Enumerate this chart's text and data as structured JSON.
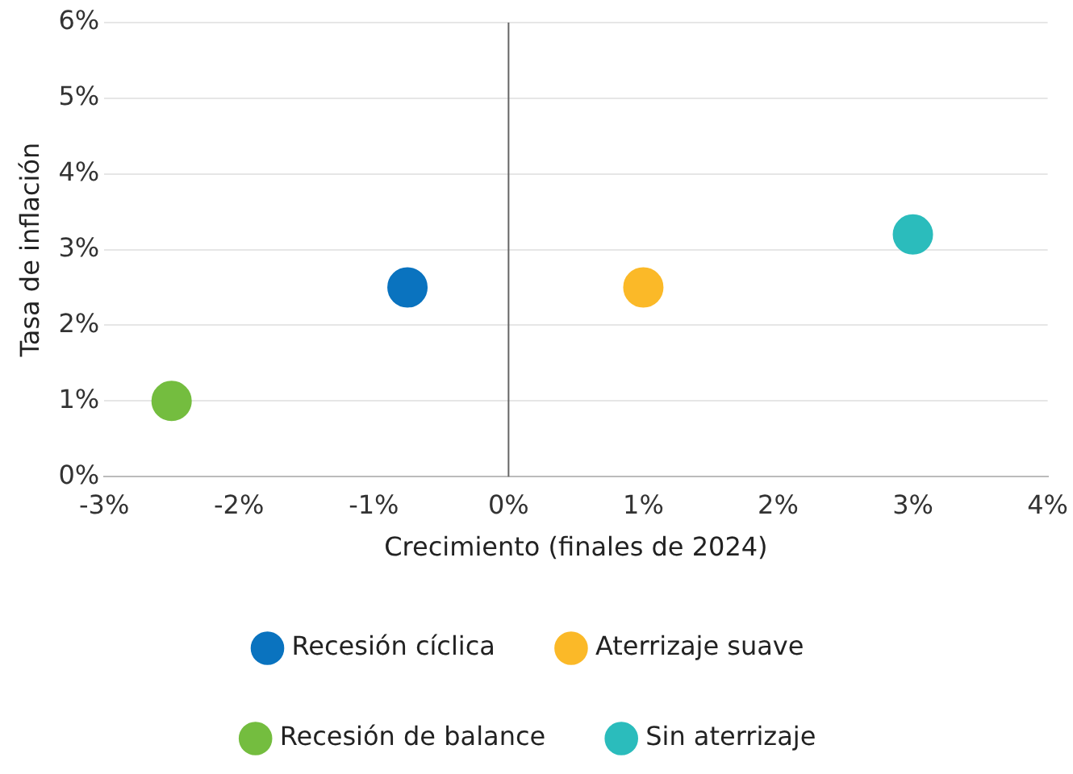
{
  "chart_data": {
    "type": "scatter",
    "xlabel": "Crecimiento (finales de 2024)",
    "ylabel": "Tasa de inflación",
    "series": [
      {
        "name": "Recesión cíclica",
        "color": "#0a73bf",
        "x": [
          -0.75
        ],
        "values": [
          2.5
        ]
      },
      {
        "name": "Aterrizaje suave",
        "color": "#fbb928",
        "x": [
          1.0
        ],
        "values": [
          2.5
        ]
      },
      {
        "name": "Recesión de balance",
        "color": "#74bd3f",
        "x": [
          -2.5
        ],
        "values": [
          1.0
        ]
      },
      {
        "name": "Sin aterrizaje",
        "color": "#2bbcbc",
        "x": [
          3.0
        ],
        "values": [
          3.2
        ]
      }
    ],
    "xlim": [
      -3,
      4
    ],
    "xticks": [
      {
        "value": -3,
        "label": "-3%"
      },
      {
        "value": -2,
        "label": "-2%"
      },
      {
        "value": -1,
        "label": "-1%"
      },
      {
        "value": 0,
        "label": "0%"
      },
      {
        "value": 1,
        "label": "1%"
      },
      {
        "value": 2,
        "label": "2%"
      },
      {
        "value": 3,
        "label": "3%"
      },
      {
        "value": 4,
        "label": "4%"
      }
    ],
    "ylim": [
      0,
      6
    ],
    "yticks": [
      {
        "value": 0,
        "label": "0%"
      },
      {
        "value": 1,
        "label": "1%"
      },
      {
        "value": 2,
        "label": "2%"
      },
      {
        "value": 3,
        "label": "3%"
      },
      {
        "value": 4,
        "label": "4%"
      },
      {
        "value": 5,
        "label": "5%"
      },
      {
        "value": 6,
        "label": "6%"
      }
    ],
    "ref_lines": [
      {
        "axis": "x",
        "value": 0,
        "color": "#666666"
      }
    ],
    "grid": "y",
    "legend": "bottom",
    "marker": "circle"
  }
}
